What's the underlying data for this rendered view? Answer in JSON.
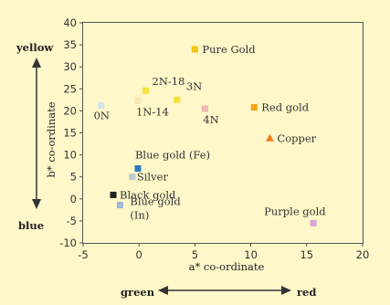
{
  "chart_data": {
    "type": "scatter",
    "xlabel": "a* co-ordinate",
    "ylabel": "b* co-ordinate",
    "xlim": [
      -5,
      20
    ],
    "ylim": [
      -10,
      40
    ],
    "xticks": [
      -5,
      0,
      5,
      10,
      15,
      20
    ],
    "yticks": [
      -10,
      -5,
      0,
      5,
      10,
      15,
      20,
      25,
      30,
      35,
      40
    ],
    "grid": false,
    "x_direction_labels": {
      "negative": "green",
      "positive": "red"
    },
    "y_direction_labels": {
      "positive": "yellow",
      "negative": "blue"
    },
    "points": [
      {
        "label": "Pure Gold",
        "x": 5.0,
        "y": 34.0,
        "color": "#f2c318",
        "shape": "square"
      },
      {
        "label": "2N-18",
        "x": 0.6,
        "y": 24.6,
        "color": "#f6e23c",
        "shape": "square"
      },
      {
        "label": "1N-14",
        "x": -0.1,
        "y": 22.3,
        "color": "#f9e7b4",
        "shape": "square"
      },
      {
        "label": "3N",
        "x": 3.4,
        "y": 22.5,
        "color": "#f4e138",
        "shape": "square"
      },
      {
        "label": "4N",
        "x": 5.9,
        "y": 20.5,
        "color": "#f1b8b2",
        "shape": "square"
      },
      {
        "label": "0N",
        "x": -3.4,
        "y": 21.2,
        "color": "#d4e4ef",
        "shape": "square"
      },
      {
        "label": "Red gold",
        "x": 10.3,
        "y": 20.8,
        "color": "#f1a712",
        "shape": "square"
      },
      {
        "label": "Copper",
        "x": 11.7,
        "y": 13.8,
        "color": "#f07e1a",
        "shape": "triangle"
      },
      {
        "label": "Blue gold (Fe)",
        "x": -0.1,
        "y": 6.9,
        "color": "#2d77c7",
        "shape": "square"
      },
      {
        "label": "Silver",
        "x": -0.6,
        "y": 5.0,
        "color": "#bfc9d1",
        "shape": "square"
      },
      {
        "label": "Black gold",
        "x": -2.3,
        "y": 0.9,
        "color": "#222222",
        "shape": "square"
      },
      {
        "label": "Blue gold (In)",
        "x": -1.7,
        "y": -1.4,
        "color": "#9eb7d9",
        "shape": "square"
      },
      {
        "label": "Purple gold",
        "x": 15.6,
        "y": -5.5,
        "color": "#d9a7d0",
        "shape": "square"
      }
    ]
  }
}
